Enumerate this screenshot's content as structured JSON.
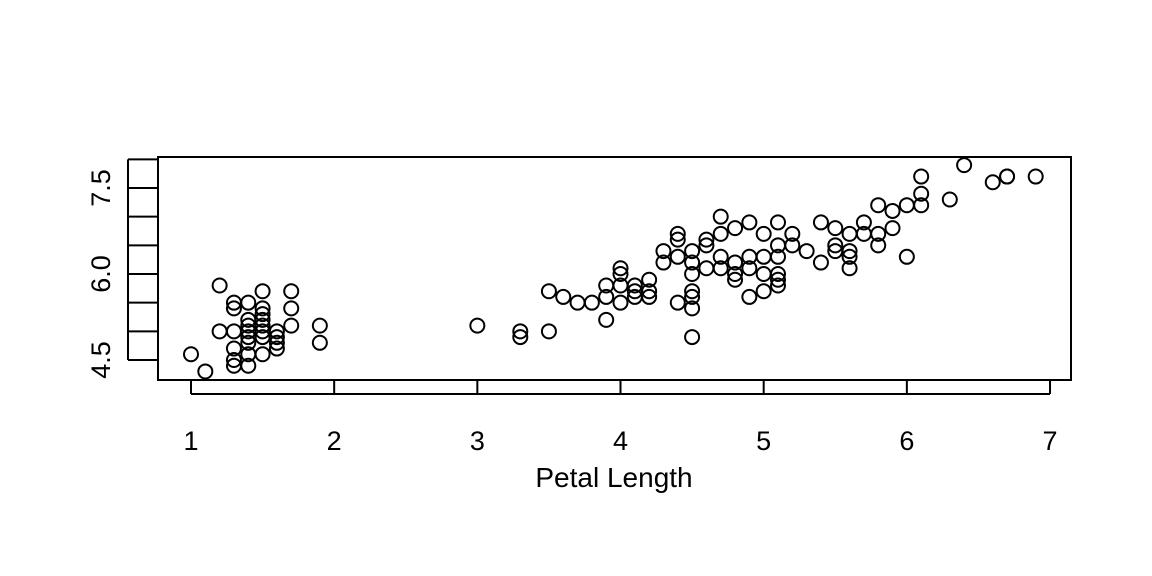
{
  "chart_data": {
    "type": "scatter",
    "title": "",
    "xlabel": "Petal Length",
    "ylabel": "",
    "xlim": [
      0.8,
      7.1
    ],
    "ylim": [
      4.3,
      8.0
    ],
    "xticks": [
      1,
      2,
      3,
      4,
      5,
      6,
      7
    ],
    "xtick_labels": [
      "1",
      "2",
      "3",
      "4",
      "5",
      "6",
      "7"
    ],
    "yticks": [
      4.5,
      5.0,
      5.5,
      6.0,
      6.5,
      7.0,
      7.5,
      8.0
    ],
    "ytick_labels": [
      "4.5",
      "",
      "",
      "6.0",
      "",
      "",
      "7.5",
      ""
    ],
    "grid": false,
    "legend": "none",
    "marker": "open-circle",
    "points": [
      [
        1.0,
        4.6
      ],
      [
        1.1,
        4.3
      ],
      [
        1.2,
        5.8
      ],
      [
        1.2,
        5.0
      ],
      [
        1.3,
        5.5
      ],
      [
        1.3,
        5.4
      ],
      [
        1.3,
        5.0
      ],
      [
        1.3,
        4.7
      ],
      [
        1.3,
        4.5
      ],
      [
        1.3,
        4.4
      ],
      [
        1.4,
        5.5
      ],
      [
        1.4,
        5.2
      ],
      [
        1.4,
        5.1
      ],
      [
        1.4,
        5.0
      ],
      [
        1.4,
        4.9
      ],
      [
        1.4,
        4.8
      ],
      [
        1.4,
        4.6
      ],
      [
        1.4,
        4.4
      ],
      [
        1.5,
        5.7
      ],
      [
        1.5,
        5.4
      ],
      [
        1.5,
        5.3
      ],
      [
        1.5,
        5.2
      ],
      [
        1.5,
        5.1
      ],
      [
        1.5,
        5.0
      ],
      [
        1.5,
        4.9
      ],
      [
        1.5,
        4.6
      ],
      [
        1.6,
        5.0
      ],
      [
        1.6,
        4.9
      ],
      [
        1.6,
        4.8
      ],
      [
        1.6,
        4.7
      ],
      [
        1.7,
        5.7
      ],
      [
        1.7,
        5.4
      ],
      [
        1.7,
        5.1
      ],
      [
        1.9,
        5.1
      ],
      [
        1.9,
        4.8
      ],
      [
        3.0,
        5.1
      ],
      [
        3.3,
        5.0
      ],
      [
        3.3,
        4.9
      ],
      [
        3.5,
        5.7
      ],
      [
        3.5,
        5.0
      ],
      [
        3.6,
        5.6
      ],
      [
        3.7,
        5.5
      ],
      [
        3.8,
        5.5
      ],
      [
        3.9,
        5.8
      ],
      [
        3.9,
        5.6
      ],
      [
        3.9,
        5.2
      ],
      [
        4.0,
        6.1
      ],
      [
        4.0,
        6.0
      ],
      [
        4.0,
        5.8
      ],
      [
        4.0,
        5.5
      ],
      [
        4.1,
        5.8
      ],
      [
        4.1,
        5.7
      ],
      [
        4.1,
        5.6
      ],
      [
        4.2,
        5.9
      ],
      [
        4.2,
        5.7
      ],
      [
        4.2,
        5.6
      ],
      [
        4.3,
        6.4
      ],
      [
        4.3,
        6.2
      ],
      [
        4.4,
        6.7
      ],
      [
        4.4,
        6.6
      ],
      [
        4.4,
        6.3
      ],
      [
        4.4,
        5.5
      ],
      [
        4.5,
        6.4
      ],
      [
        4.5,
        6.2
      ],
      [
        4.5,
        6.0
      ],
      [
        4.5,
        5.7
      ],
      [
        4.5,
        5.6
      ],
      [
        4.5,
        5.4
      ],
      [
        4.5,
        4.9
      ],
      [
        4.6,
        6.6
      ],
      [
        4.6,
        6.5
      ],
      [
        4.6,
        6.1
      ],
      [
        4.7,
        7.0
      ],
      [
        4.7,
        6.7
      ],
      [
        4.7,
        6.3
      ],
      [
        4.7,
        6.1
      ],
      [
        4.8,
        6.8
      ],
      [
        4.8,
        6.2
      ],
      [
        4.8,
        6.0
      ],
      [
        4.8,
        5.9
      ],
      [
        4.9,
        6.9
      ],
      [
        4.9,
        6.3
      ],
      [
        4.9,
        6.1
      ],
      [
        4.9,
        5.6
      ],
      [
        5.0,
        6.7
      ],
      [
        5.0,
        6.3
      ],
      [
        5.0,
        6.0
      ],
      [
        5.0,
        5.7
      ],
      [
        5.1,
        6.9
      ],
      [
        5.1,
        6.5
      ],
      [
        5.1,
        6.3
      ],
      [
        5.1,
        6.0
      ],
      [
        5.1,
        5.9
      ],
      [
        5.1,
        5.8
      ],
      [
        5.2,
        6.7
      ],
      [
        5.2,
        6.5
      ],
      [
        5.3,
        6.4
      ],
      [
        5.4,
        6.9
      ],
      [
        5.4,
        6.2
      ],
      [
        5.5,
        6.8
      ],
      [
        5.5,
        6.5
      ],
      [
        5.5,
        6.4
      ],
      [
        5.6,
        6.7
      ],
      [
        5.6,
        6.4
      ],
      [
        5.6,
        6.3
      ],
      [
        5.6,
        6.1
      ],
      [
        5.7,
        6.9
      ],
      [
        5.7,
        6.7
      ],
      [
        5.8,
        7.2
      ],
      [
        5.8,
        6.7
      ],
      [
        5.8,
        6.5
      ],
      [
        5.9,
        7.1
      ],
      [
        5.9,
        6.8
      ],
      [
        6.0,
        7.2
      ],
      [
        6.0,
        6.3
      ],
      [
        6.1,
        7.7
      ],
      [
        6.1,
        7.4
      ],
      [
        6.1,
        7.2
      ],
      [
        6.3,
        7.3
      ],
      [
        6.4,
        7.9
      ],
      [
        6.6,
        7.6
      ],
      [
        6.7,
        7.7
      ],
      [
        6.7,
        7.7
      ],
      [
        6.9,
        7.7
      ]
    ]
  }
}
